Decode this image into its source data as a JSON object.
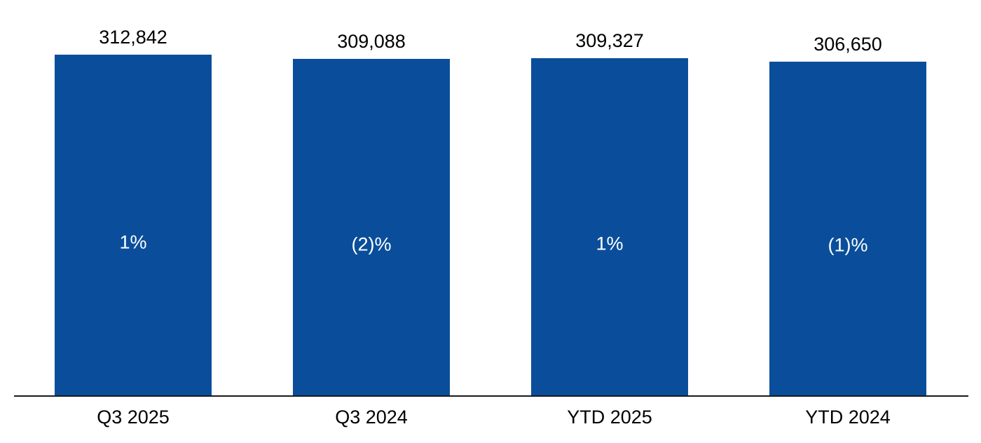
{
  "chart_data": {
    "type": "bar",
    "title": "",
    "xlabel": "",
    "ylabel": "",
    "categories": [
      "Q3 2025",
      "Q3 2024",
      "YTD 2025",
      "YTD 2024"
    ],
    "values": [
      312842,
      309088,
      309327,
      306650
    ],
    "value_labels": [
      "312,842",
      "309,088",
      "309,327",
      "306,650"
    ],
    "inner_labels": [
      "1%",
      "(2)%",
      "1%",
      "(1)%"
    ],
    "ylim": [
      0,
      320000
    ],
    "grid": false,
    "legend": false,
    "bar_color": "#0a4e9b",
    "inner_label_color": "#ffffff",
    "value_label_color": "#000000",
    "axis_line_color": "#1a1a1a",
    "background_color": "#ffffff"
  }
}
